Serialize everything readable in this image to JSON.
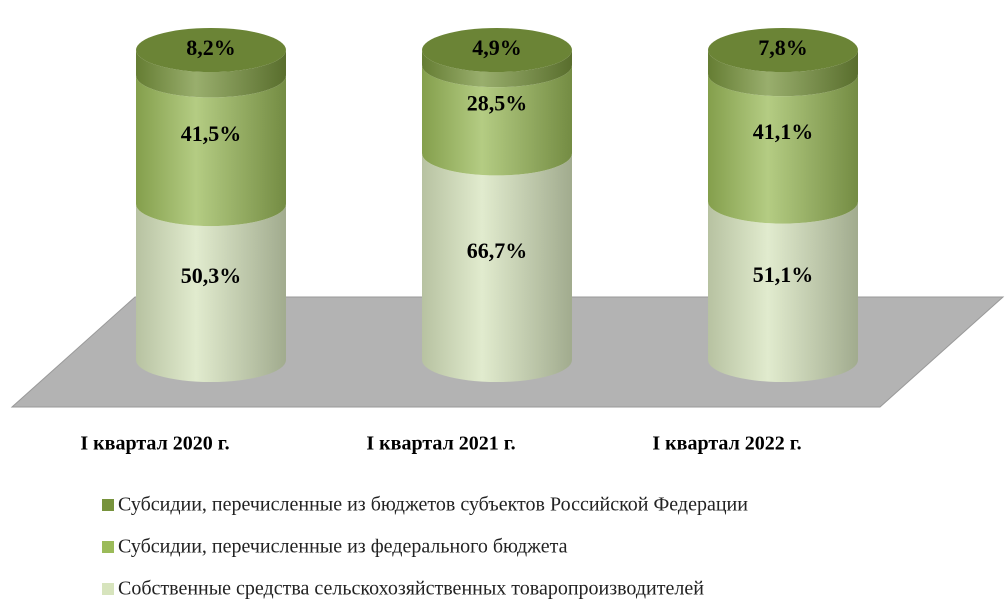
{
  "chart_data": {
    "type": "bar",
    "stacked": true,
    "categories": [
      "I квартал 2020 г.",
      "I квартал 2021 г.",
      "I квартал 2022 г."
    ],
    "series": [
      {
        "name": "Субсидии, перечисленные из бюджетов субъектов Российской Федерации",
        "color": "#77933c",
        "values": [
          8.2,
          4.9,
          7.8
        ],
        "value_labels": [
          "8,2%",
          "4,9%",
          "7,8%"
        ]
      },
      {
        "name": "Субсидии, перечисленные из федерального бюджета",
        "color": "#9bbb59",
        "values": [
          41.5,
          28.5,
          41.1
        ],
        "value_labels": [
          "41,5%",
          "28,5%",
          "41,1%"
        ]
      },
      {
        "name": "Собственные средства сельскохозяйственных товаропроизводителей",
        "color": "#d7e4bd",
        "values": [
          50.3,
          66.7,
          51.1
        ],
        "value_labels": [
          "50,3%",
          "66,7%",
          "51,1%"
        ]
      }
    ],
    "legend": "bottom"
  }
}
